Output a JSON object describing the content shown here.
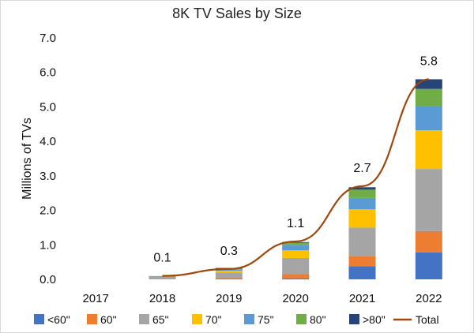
{
  "chart_data": {
    "type": "bar",
    "title": "8K TV Sales by Size",
    "xlabel": "",
    "ylabel": "Millions of TVs",
    "categories": [
      "2017",
      "2018",
      "2019",
      "2020",
      "2021",
      "2022"
    ],
    "ylim": [
      0,
      7
    ],
    "yticks": [
      "0.0",
      "1.0",
      "2.0",
      "3.0",
      "4.0",
      "5.0",
      "6.0",
      "7.0"
    ],
    "stacked": true,
    "series": [
      {
        "name": "<60\"",
        "color": "#4472C4",
        "values": [
          0.0,
          0.0,
          0.02,
          0.03,
          0.38,
          0.78
        ]
      },
      {
        "name": "60\"",
        "color": "#ED7D31",
        "values": [
          0.0,
          0.0,
          0.02,
          0.12,
          0.3,
          0.62
        ]
      },
      {
        "name": "65\"",
        "color": "#A5A5A5",
        "values": [
          0.0,
          0.08,
          0.16,
          0.47,
          0.82,
          1.8
        ]
      },
      {
        "name": "70\"",
        "color": "#FFC000",
        "values": [
          0.0,
          0.01,
          0.05,
          0.22,
          0.53,
          1.12
        ]
      },
      {
        "name": "75\"",
        "color": "#5B9BD5",
        "values": [
          0.0,
          0.005,
          0.04,
          0.16,
          0.33,
          0.7
        ]
      },
      {
        "name": "80\"",
        "color": "#70AD47",
        "values": [
          0.0,
          0.0,
          0.03,
          0.06,
          0.24,
          0.5
        ]
      },
      {
        "name": ">80\"",
        "color": "#264478",
        "values": [
          0.0,
          0.0,
          0.01,
          0.02,
          0.07,
          0.28
        ]
      }
    ],
    "line_series": {
      "name": "Total",
      "color": "#9E480E",
      "values": [
        0.0,
        0.1,
        0.3,
        1.1,
        2.7,
        5.8
      ],
      "data_labels": [
        "",
        "0.1",
        "0.3",
        "1.1",
        "2.7",
        "5.8"
      ]
    },
    "legend": {
      "position": "bottom",
      "items": [
        "<60\"",
        "60\"",
        "65\"",
        "70\"",
        "75\"",
        "80\"",
        ">80\"",
        "Total"
      ]
    },
    "grid": false
  }
}
